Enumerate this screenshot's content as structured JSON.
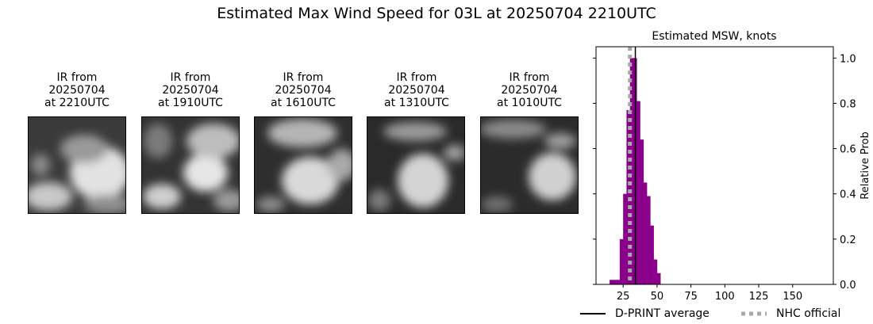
{
  "figure_title": "Estimated Max Wind Speed for 03L at 20250704 2210UTC",
  "ir_panels": [
    {
      "line1": "IR from",
      "line2": "20250704",
      "line3": "at 2210UTC"
    },
    {
      "line1": "IR from",
      "line2": "20250704",
      "line3": "at 1910UTC"
    },
    {
      "line1": "IR from",
      "line2": "20250704",
      "line3": "at 1610UTC"
    },
    {
      "line1": "IR from",
      "line2": "20250704",
      "line3": "at 1310UTC"
    },
    {
      "line1": "IR from",
      "line2": "20250704",
      "line3": "at 1010UTC"
    }
  ],
  "chart_data": {
    "type": "bar",
    "title": "Estimated MSW, knots",
    "xlabel": "",
    "ylabel": "Relative Prob",
    "xlim": [
      5,
      180
    ],
    "ylim": [
      0,
      1.05
    ],
    "xticks": [
      25,
      50,
      75,
      100,
      125,
      150
    ],
    "yticks": [
      "0.0",
      "0.2",
      "0.4",
      "0.6",
      "0.8",
      "1.0"
    ],
    "bin_width": 2.5,
    "bins": [
      {
        "x": 15,
        "value": 0.02
      },
      {
        "x": 17.5,
        "value": 0.02
      },
      {
        "x": 20,
        "value": 0.02
      },
      {
        "x": 22.5,
        "value": 0.2
      },
      {
        "x": 25,
        "value": 0.4
      },
      {
        "x": 27.5,
        "value": 0.77
      },
      {
        "x": 30,
        "value": 1.0
      },
      {
        "x": 32.5,
        "value": 1.0
      },
      {
        "x": 35,
        "value": 0.81
      },
      {
        "x": 37.5,
        "value": 0.64
      },
      {
        "x": 40,
        "value": 0.45
      },
      {
        "x": 42.5,
        "value": 0.39
      },
      {
        "x": 45,
        "value": 0.26
      },
      {
        "x": 47.5,
        "value": 0.11
      },
      {
        "x": 50,
        "value": 0.05
      }
    ],
    "bar_color": "#8b008b",
    "dprint_average": 34,
    "nhc_official": 30,
    "legend": [
      {
        "name": "D-PRINT average",
        "color": "#000000",
        "style": "solid"
      },
      {
        "name": "NHC official",
        "color": "#a9a9a9",
        "style": "dotted"
      }
    ],
    "legend_placement": "bottom"
  }
}
